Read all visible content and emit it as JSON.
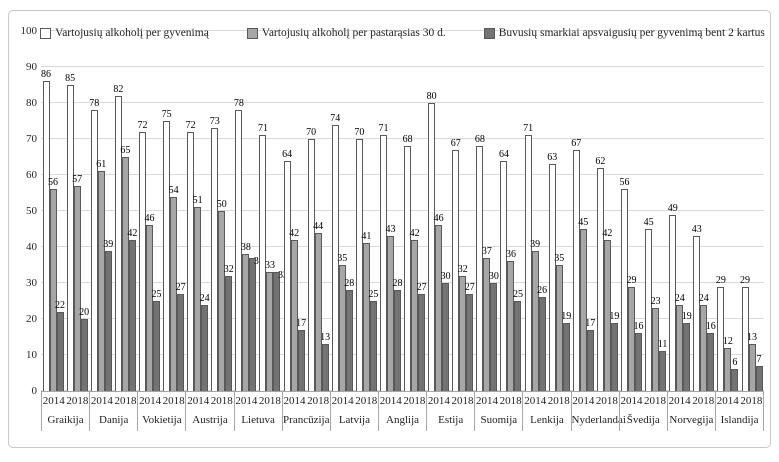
{
  "chart_data": {
    "type": "bar",
    "title": "",
    "xlabel": "",
    "ylabel": "",
    "ylim": [
      0,
      100
    ],
    "yticks": [
      0,
      10,
      20,
      30,
      40,
      50,
      60,
      70,
      80,
      90,
      100
    ],
    "grid": true,
    "legend_position": "top",
    "series": [
      {
        "key": "alcohol-lifetime",
        "name": "Vartojusių alkoholį per gyvenimą",
        "fill": "#ffffff",
        "border": "#595959"
      },
      {
        "key": "alcohol-last-30-days",
        "name": "Vartojusių alkoholį per pastarąsias 30 d.",
        "fill": "#a6a6a6",
        "border": "#595959"
      },
      {
        "key": "heavily-drunk-2-times",
        "name": "Buvusių smarkiai apsvaigusių per gyvenimą bent 2 kartus",
        "fill": "#737373",
        "border": "#595959"
      }
    ],
    "year_labels": [
      "2014",
      "2018"
    ],
    "countries": [
      {
        "name": "Graikija",
        "years": [
          {
            "label": "2014",
            "values": [
              86,
              56,
              22
            ]
          },
          {
            "label": "2018",
            "values": [
              85,
              57,
              20
            ]
          }
        ]
      },
      {
        "name": "Danija",
        "years": [
          {
            "label": "2014",
            "values": [
              78,
              61,
              39
            ]
          },
          {
            "label": "2018",
            "values": [
              82,
              65,
              42
            ]
          }
        ]
      },
      {
        "name": "Vokietija",
        "years": [
          {
            "label": "2014",
            "values": [
              72,
              46,
              25
            ]
          },
          {
            "label": "2018",
            "values": [
              75,
              54,
              27
            ]
          }
        ]
      },
      {
        "name": "Austrija",
        "years": [
          {
            "label": "2014",
            "values": [
              72,
              51,
              24
            ]
          },
          {
            "label": "2018",
            "values": [
              73,
              50,
              32
            ]
          }
        ]
      },
      {
        "name": "Lietuva",
        "years": [
          {
            "label": "2014",
            "values": [
              78,
              38,
              37
            ]
          },
          {
            "label": "2018",
            "values": [
              71,
              33,
              33
            ]
          }
        ]
      },
      {
        "name": "Prancūzija",
        "years": [
          {
            "label": "2014",
            "values": [
              64,
              42,
              17
            ]
          },
          {
            "label": "2018",
            "values": [
              70,
              44,
              13
            ]
          }
        ]
      },
      {
        "name": "Latvija",
        "years": [
          {
            "label": "2014",
            "values": [
              74,
              35,
              28
            ]
          },
          {
            "label": "2018",
            "values": [
              70,
              41,
              25
            ]
          }
        ]
      },
      {
        "name": "Anglija",
        "years": [
          {
            "label": "2014",
            "values": [
              71,
              43,
              28
            ]
          },
          {
            "label": "2018",
            "values": [
              68,
              42,
              27
            ]
          }
        ]
      },
      {
        "name": "Estija",
        "years": [
          {
            "label": "2014",
            "values": [
              80,
              46,
              30
            ]
          },
          {
            "label": "2018",
            "values": [
              67,
              32,
              27
            ]
          }
        ]
      },
      {
        "name": "Suomija",
        "years": [
          {
            "label": "2014",
            "values": [
              68,
              37,
              30
            ]
          },
          {
            "label": "2018",
            "values": [
              64,
              36,
              25
            ]
          }
        ]
      },
      {
        "name": "Lenkija",
        "years": [
          {
            "label": "2014",
            "values": [
              71,
              39,
              26
            ]
          },
          {
            "label": "2018",
            "values": [
              63,
              35,
              19
            ]
          }
        ]
      },
      {
        "name": "Nyderlandai",
        "years": [
          {
            "label": "2014",
            "values": [
              67,
              45,
              17
            ]
          },
          {
            "label": "2018",
            "values": [
              62,
              42,
              19
            ]
          }
        ]
      },
      {
        "name": "Švedija",
        "years": [
          {
            "label": "2014",
            "values": [
              56,
              29,
              16
            ]
          },
          {
            "label": "2018",
            "values": [
              45,
              23,
              11
            ]
          }
        ]
      },
      {
        "name": "Norvegija",
        "years": [
          {
            "label": "2014",
            "values": [
              49,
              24,
              19
            ]
          },
          {
            "label": "2018",
            "values": [
              43,
              24,
              16
            ]
          }
        ]
      },
      {
        "name": "Islandija",
        "years": [
          {
            "label": "2014",
            "values": [
              29,
              12,
              6
            ]
          },
          {
            "label": "2018",
            "values": [
              29,
              13,
              7
            ]
          }
        ]
      }
    ]
  },
  "colors": {
    "frame_border": "#c9c9c9",
    "gridline": "#d9d9d9",
    "axis_line": "#a6a6a6",
    "text": "#1f1f1f",
    "bar_border": "#595959"
  }
}
